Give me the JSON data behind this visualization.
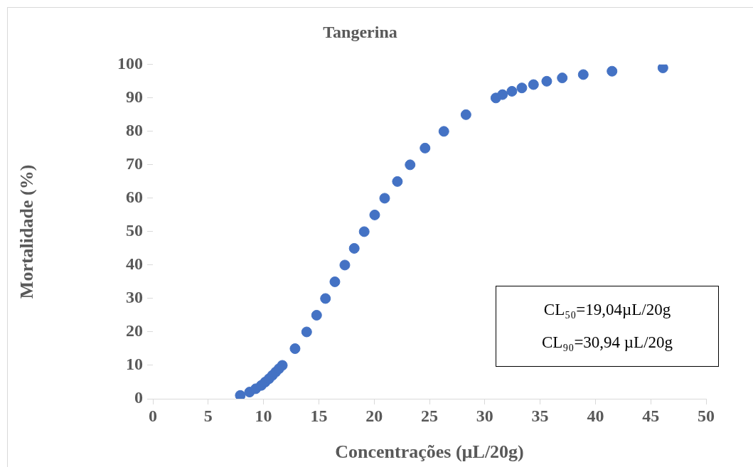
{
  "chart_data": {
    "type": "scatter",
    "title": "Tangerina",
    "xlabel": "Concentrações (µL/20g)",
    "ylabel": "Mortalidade (%)",
    "x": [
      7.9,
      8.74,
      9.3,
      9.8,
      10.15,
      10.5,
      10.8,
      11.1,
      11.4,
      11.7,
      12.85,
      13.9,
      14.8,
      15.6,
      16.45,
      17.35,
      18.2,
      19.1,
      20.05,
      20.95,
      22.1,
      23.25,
      24.6,
      26.3,
      28.3,
      31.0,
      31.6,
      32.45,
      33.35,
      34.4,
      35.6,
      37.0,
      38.9,
      41.5,
      46.1
    ],
    "series": [
      {
        "color": "#4472c4",
        "values": [
          1,
          2,
          3,
          4,
          5,
          6,
          7,
          8,
          9,
          10,
          15,
          20,
          25,
          30,
          35,
          40,
          45,
          50,
          55,
          60,
          65,
          70,
          75,
          80,
          85,
          90,
          91,
          92,
          93,
          94,
          95,
          96,
          97,
          98,
          99
        ]
      }
    ],
    "xlim": [
      0,
      50
    ],
    "xticks": [
      0,
      5,
      10,
      15,
      20,
      25,
      30,
      35,
      40,
      45,
      50
    ],
    "ylim": [
      0,
      100
    ],
    "yticks": [
      0,
      10,
      20,
      30,
      40,
      50,
      60,
      70,
      80,
      90,
      100
    ],
    "grid": false,
    "legend": false,
    "marker": "circle",
    "annotations": [
      "CL₅₀=19,04µL/20g",
      "CL₉₀=30,94 µL/20g"
    ]
  }
}
